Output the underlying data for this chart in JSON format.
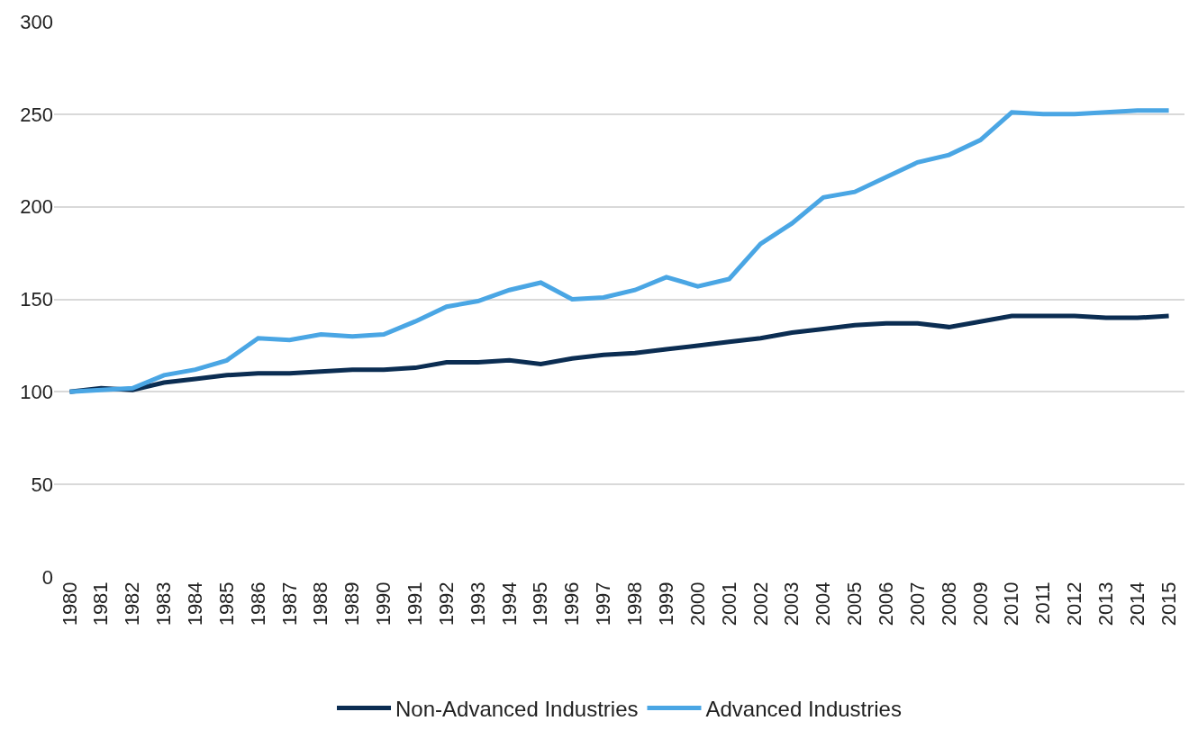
{
  "chart_data": {
    "type": "line",
    "categories": [
      "1980",
      "1981",
      "1982",
      "1983",
      "1984",
      "1985",
      "1986",
      "1987",
      "1988",
      "1989",
      "1990",
      "1991",
      "1992",
      "1993",
      "1994",
      "1995",
      "1996",
      "1997",
      "1998",
      "1999",
      "2000",
      "2001",
      "2002",
      "2003",
      "2004",
      "2005",
      "2006",
      "2007",
      "2008",
      "2009",
      "2010",
      "2011",
      "2012",
      "2013",
      "2014",
      "2015"
    ],
    "series": [
      {
        "name": "Non-Advanced Industries",
        "color": "#0b2d52",
        "values": [
          100,
          102,
          101,
          105,
          107,
          109,
          110,
          110,
          111,
          112,
          112,
          113,
          116,
          116,
          117,
          115,
          118,
          120,
          121,
          123,
          125,
          127,
          129,
          132,
          134,
          136,
          137,
          137,
          135,
          138,
          141,
          141,
          141,
          140,
          140,
          141
        ]
      },
      {
        "name": "Advanced Industries",
        "color": "#4aa6e4",
        "values": [
          100,
          101,
          102,
          109,
          112,
          117,
          129,
          128,
          131,
          130,
          131,
          138,
          146,
          149,
          155,
          159,
          150,
          151,
          155,
          162,
          157,
          161,
          180,
          191,
          205,
          208,
          216,
          224,
          228,
          236,
          251,
          250,
          250,
          251,
          252,
          252
        ]
      }
    ],
    "ylim": [
      0,
      300
    ],
    "yticks": [
      0,
      50,
      100,
      150,
      200,
      250,
      300
    ],
    "grid": "y",
    "legend": "bottom",
    "marker": "none",
    "line_style": "solid"
  }
}
